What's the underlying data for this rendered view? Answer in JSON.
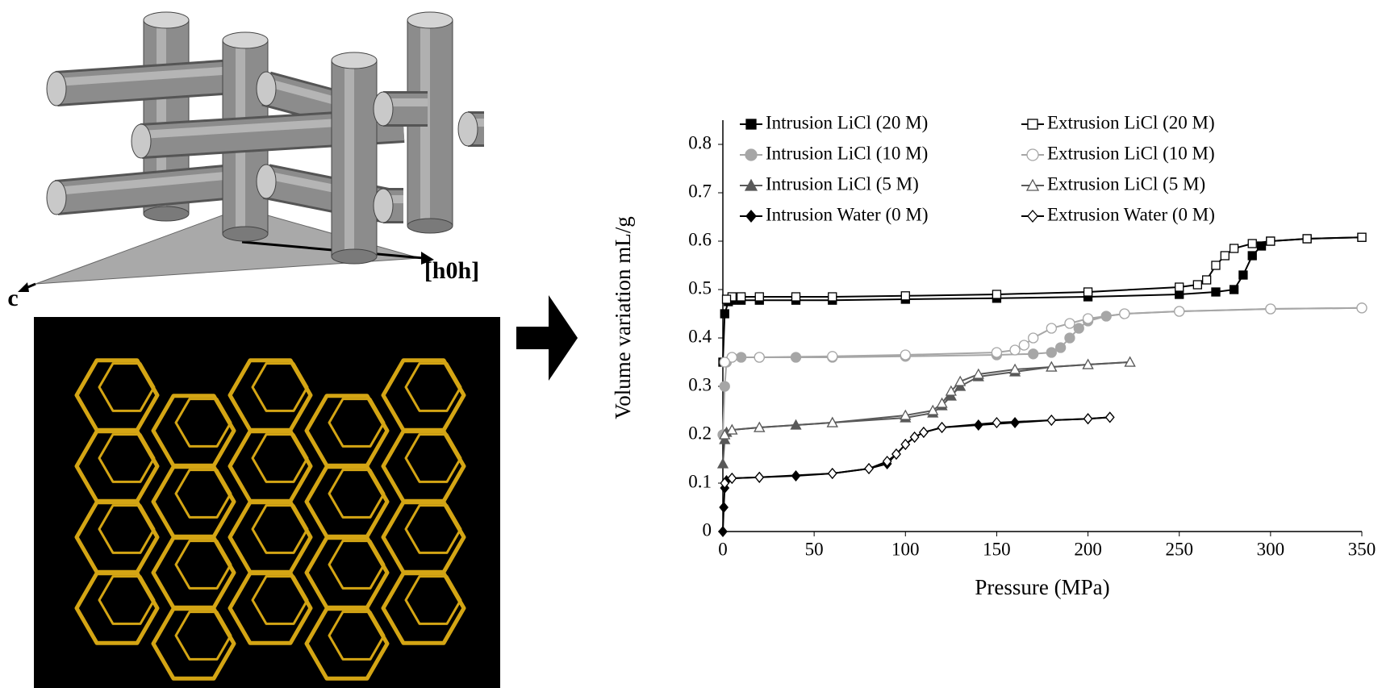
{
  "diagram": {
    "labels": [
      "[h0h]",
      "c"
    ]
  },
  "chart_data": {
    "type": "line",
    "x_label": "Pressure (MPa)",
    "y_label": "Volume variation mL/g",
    "xlim": [
      0,
      350
    ],
    "xticks": [
      0,
      50,
      100,
      150,
      200,
      250,
      300,
      350
    ],
    "ylim": [
      0,
      0.85
    ],
    "yticks": [
      0,
      0.1,
      0.2,
      0.3,
      0.4,
      0.5,
      0.6,
      0.7,
      0.8
    ],
    "legend": "top",
    "series": [
      {
        "name": "Intrusion LiCl (20 M)",
        "color": "#000000",
        "marker": "square",
        "filled": true,
        "x": [
          0,
          1,
          3,
          5,
          10,
          20,
          40,
          60,
          100,
          150,
          200,
          250,
          270,
          280,
          285,
          290,
          295,
          300,
          320,
          350
        ],
        "values": [
          0.35,
          0.45,
          0.475,
          0.478,
          0.478,
          0.478,
          0.478,
          0.478,
          0.48,
          0.482,
          0.485,
          0.49,
          0.495,
          0.5,
          0.53,
          0.57,
          0.59,
          0.6,
          0.605,
          0.608
        ]
      },
      {
        "name": "Extrusion LiCl (20 M)",
        "color": "#000000",
        "marker": "square",
        "filled": false,
        "x": [
          350,
          320,
          300,
          290,
          280,
          275,
          270,
          265,
          260,
          250,
          200,
          150,
          100,
          60,
          40,
          20,
          10,
          5,
          2
        ],
        "values": [
          0.608,
          0.605,
          0.6,
          0.595,
          0.585,
          0.57,
          0.55,
          0.52,
          0.51,
          0.505,
          0.495,
          0.49,
          0.487,
          0.485,
          0.485,
          0.485,
          0.485,
          0.485,
          0.48
        ]
      },
      {
        "name": "Intrusion LiCl (10 M)",
        "color": "#a6a6a6",
        "marker": "circle",
        "filled": true,
        "x": [
          0,
          1,
          2,
          5,
          10,
          20,
          40,
          60,
          100,
          150,
          170,
          180,
          185,
          190,
          195,
          200,
          210,
          220,
          250,
          300,
          350
        ],
        "values": [
          0.2,
          0.3,
          0.35,
          0.36,
          0.36,
          0.36,
          0.36,
          0.36,
          0.362,
          0.365,
          0.367,
          0.37,
          0.38,
          0.4,
          0.42,
          0.435,
          0.445,
          0.45,
          0.455,
          0.46,
          0.462
        ]
      },
      {
        "name": "Extrusion LiCl (10 M)",
        "color": "#a6a6a6",
        "marker": "circle",
        "filled": false,
        "x": [
          350,
          300,
          250,
          220,
          200,
          190,
          180,
          170,
          165,
          160,
          150,
          100,
          60,
          20,
          5,
          1
        ],
        "values": [
          0.462,
          0.46,
          0.455,
          0.45,
          0.44,
          0.43,
          0.42,
          0.4,
          0.385,
          0.375,
          0.37,
          0.365,
          0.362,
          0.36,
          0.36,
          0.35
        ]
      },
      {
        "name": "Intrusion LiCl (5 M)",
        "color": "#595959",
        "marker": "triangle",
        "filled": true,
        "x": [
          0,
          1,
          2,
          5,
          20,
          40,
          60,
          100,
          115,
          120,
          125,
          130,
          140,
          160,
          180,
          200,
          223
        ],
        "values": [
          0.14,
          0.19,
          0.205,
          0.21,
          0.215,
          0.22,
          0.225,
          0.235,
          0.245,
          0.26,
          0.28,
          0.3,
          0.32,
          0.33,
          0.34,
          0.345,
          0.35
        ]
      },
      {
        "name": "Extrusion LiCl (5 M)",
        "color": "#595959",
        "marker": "triangle",
        "filled": false,
        "x": [
          223,
          200,
          180,
          160,
          140,
          130,
          125,
          120,
          115,
          100,
          60,
          20,
          5,
          1
        ],
        "values": [
          0.35,
          0.345,
          0.34,
          0.335,
          0.325,
          0.31,
          0.29,
          0.265,
          0.25,
          0.24,
          0.225,
          0.215,
          0.21,
          0.2
        ]
      },
      {
        "name": "Intrusion Water (0 M)",
        "color": "#000000",
        "marker": "diamond",
        "filled": true,
        "x": [
          0,
          0.5,
          1,
          2,
          5,
          20,
          40,
          60,
          80,
          90,
          95,
          100,
          105,
          110,
          120,
          140,
          160,
          180,
          200,
          212
        ],
        "values": [
          0,
          0.05,
          0.09,
          0.105,
          0.11,
          0.112,
          0.115,
          0.12,
          0.13,
          0.14,
          0.16,
          0.18,
          0.195,
          0.205,
          0.215,
          0.22,
          0.225,
          0.23,
          0.233,
          0.236
        ]
      },
      {
        "name": "Extrusion Water (0 M)",
        "color": "#000000",
        "marker": "diamond",
        "filled": false,
        "x": [
          212,
          200,
          180,
          150,
          120,
          110,
          105,
          100,
          95,
          90,
          80,
          60,
          20,
          5,
          1
        ],
        "values": [
          0.236,
          0.233,
          0.23,
          0.225,
          0.215,
          0.205,
          0.195,
          0.18,
          0.16,
          0.145,
          0.13,
          0.12,
          0.112,
          0.11,
          0.1
        ]
      }
    ]
  }
}
